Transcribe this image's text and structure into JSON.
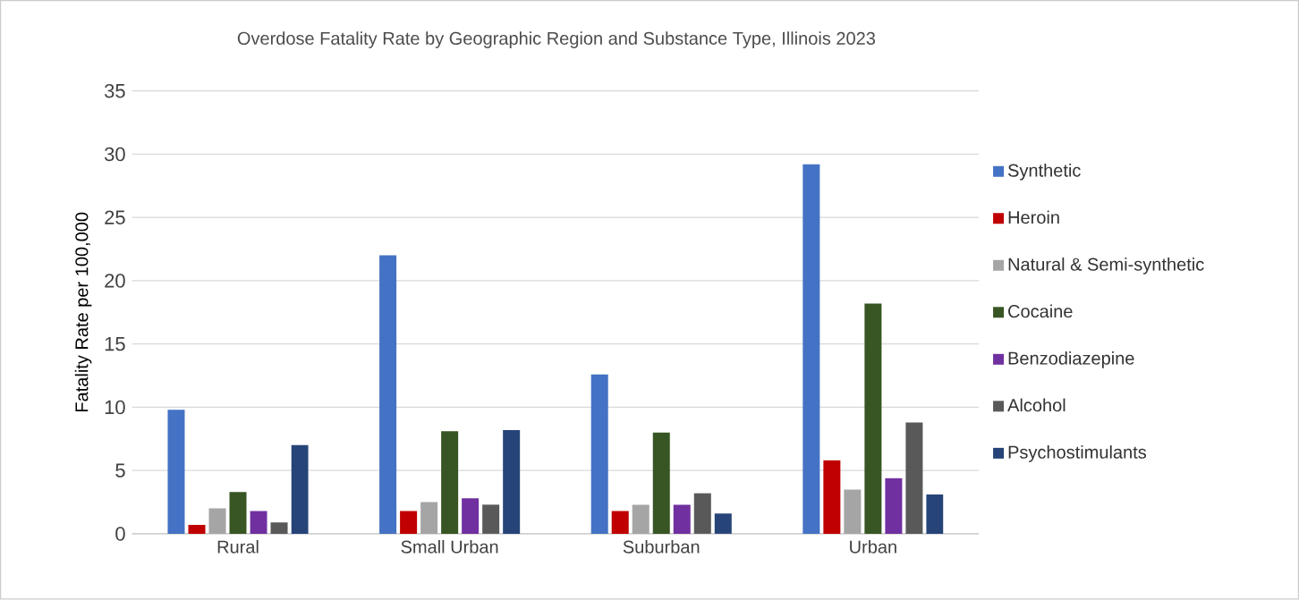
{
  "chart_data": {
    "type": "bar",
    "title": "Overdose Fatality Rate by Geographic Region and Substance Type, Illinois 2023",
    "ylabel": "Fatality Rate per 100,000",
    "categories": [
      "Rural",
      "Small Urban",
      "Suburban",
      "Urban"
    ],
    "series": [
      {
        "name": "Synthetic",
        "color": "#4472c4",
        "values": [
          9.8,
          22.0,
          12.6,
          29.2
        ]
      },
      {
        "name": "Heroin",
        "color": "#c00000",
        "values": [
          0.7,
          1.8,
          1.8,
          5.8
        ]
      },
      {
        "name": "Natural & Semi-synthetic",
        "color": "#a5a5a5",
        "values": [
          2.0,
          2.5,
          2.3,
          3.5
        ]
      },
      {
        "name": "Cocaine",
        "color": "#375623",
        "values": [
          3.3,
          8.1,
          8.0,
          18.2
        ]
      },
      {
        "name": "Benzodiazepine",
        "color": "#7030a0",
        "values": [
          1.8,
          2.8,
          2.3,
          4.4
        ]
      },
      {
        "name": "Alcohol",
        "color": "#595959",
        "values": [
          0.9,
          2.3,
          3.2,
          8.8
        ]
      },
      {
        "name": "Psychostimulants",
        "color": "#264478",
        "values": [
          7.0,
          8.2,
          1.6,
          3.1
        ]
      }
    ],
    "ylim": [
      0,
      35
    ],
    "yticks": [
      0,
      5,
      10,
      15,
      20,
      25,
      30,
      35
    ],
    "grid": "y",
    "legend": "right"
  }
}
